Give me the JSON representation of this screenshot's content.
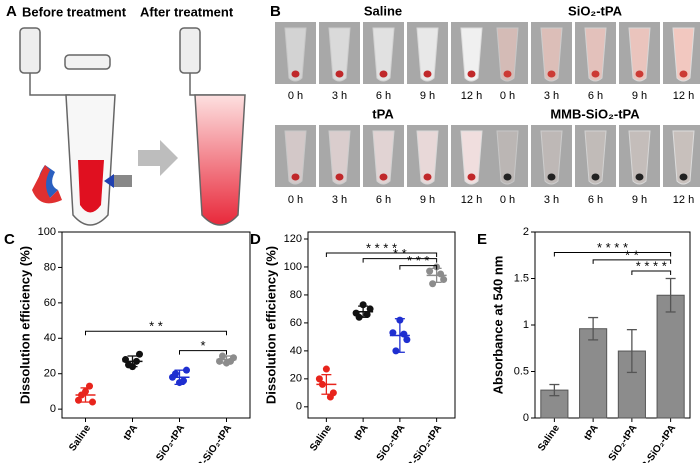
{
  "panel_a": {
    "letter": "A",
    "before": "Before treatment",
    "after": "After treatment"
  },
  "panel_b": {
    "letter": "B",
    "groups": [
      {
        "name": "Saline",
        "times": [
          "0 h",
          "3 h",
          "6 h",
          "9 h",
          "12 h"
        ]
      },
      {
        "name": "SiO₂-tPA",
        "times": [
          "0 h",
          "3 h",
          "6 h",
          "9 h",
          "12 h"
        ]
      },
      {
        "name": "tPA",
        "times": [
          "0 h",
          "3 h",
          "6 h",
          "9 h",
          "12 h"
        ]
      },
      {
        "name": "MMB-SiO₂-tPA",
        "times": [
          "0 h",
          "3 h",
          "6 h",
          "9 h",
          "12 h"
        ]
      }
    ]
  },
  "chart_data": [
    {
      "type": "dotplot",
      "letter": "C",
      "ylabel": "Dissolution efficiency (%)",
      "categories": [
        "Saline",
        "tPA",
        "SiO₂-tPA",
        "MMB-SiO₂-tPA"
      ],
      "colors": [
        "#e8241c",
        "#111111",
        "#1f2fd0",
        "#8c8c8c"
      ],
      "points": [
        [
          10,
          5,
          4,
          8,
          13
        ],
        [
          24,
          28,
          31,
          25,
          27
        ],
        [
          15,
          18,
          22,
          20,
          16
        ],
        [
          26,
          27,
          29,
          30,
          27
        ]
      ],
      "means": [
        8,
        27,
        18,
        28
      ],
      "errors": [
        4,
        3,
        4,
        2
      ],
      "ylim": [
        -5,
        100
      ],
      "yticks": [
        0,
        20,
        40,
        60,
        80,
        100
      ],
      "annotations": [
        {
          "from": 0,
          "to": 3,
          "y": 44,
          "label": "* *"
        },
        {
          "from": 2,
          "to": 3,
          "y": 33,
          "label": "*"
        }
      ]
    },
    {
      "type": "dotplot",
      "letter": "D",
      "ylabel": "Dissolution efficiency (%)",
      "categories": [
        "Saline",
        "tPA",
        "SiO₂-tPA",
        "MMB-SiO₂-tPA"
      ],
      "colors": [
        "#e8241c",
        "#111111",
        "#1f2fd0",
        "#8c8c8c"
      ],
      "points": [
        [
          27,
          20,
          10,
          16,
          7
        ],
        [
          73,
          67,
          70,
          64,
          66
        ],
        [
          62,
          53,
          48,
          40,
          52
        ],
        [
          100,
          97,
          91,
          88,
          95
        ]
      ],
      "means": [
        16,
        68,
        51,
        94
      ],
      "errors": [
        7,
        4,
        12,
        5
      ],
      "ylim": [
        -8,
        125
      ],
      "yticks": [
        0,
        20,
        40,
        60,
        80,
        100,
        120
      ],
      "annotations": [
        {
          "from": 0,
          "to": 3,
          "y": 110,
          "label": "* * * *"
        },
        {
          "from": 1,
          "to": 3,
          "y": 106,
          "label": "* *"
        },
        {
          "from": 2,
          "to": 3,
          "y": 101,
          "label": "* * *"
        }
      ]
    },
    {
      "type": "bar",
      "letter": "E",
      "ylabel": "Absorbance at 540 nm",
      "categories": [
        "Saline",
        "tPA",
        "SiO₂-tPA",
        "MMB-SiO₂-tPA"
      ],
      "color": "#8c8c8c",
      "values": [
        0.3,
        0.96,
        0.72,
        1.32
      ],
      "errors": [
        0.06,
        0.12,
        0.23,
        0.18
      ],
      "ylim": [
        0,
        2
      ],
      "yticks": [
        0,
        0.5,
        1,
        1.5,
        2
      ],
      "annotations": [
        {
          "from": 0,
          "to": 3,
          "y": 1.78,
          "label": "* * * *"
        },
        {
          "from": 1,
          "to": 3,
          "y": 1.7,
          "label": "* *"
        },
        {
          "from": 2,
          "to": 3,
          "y": 1.58,
          "label": "* * * *"
        }
      ]
    }
  ]
}
